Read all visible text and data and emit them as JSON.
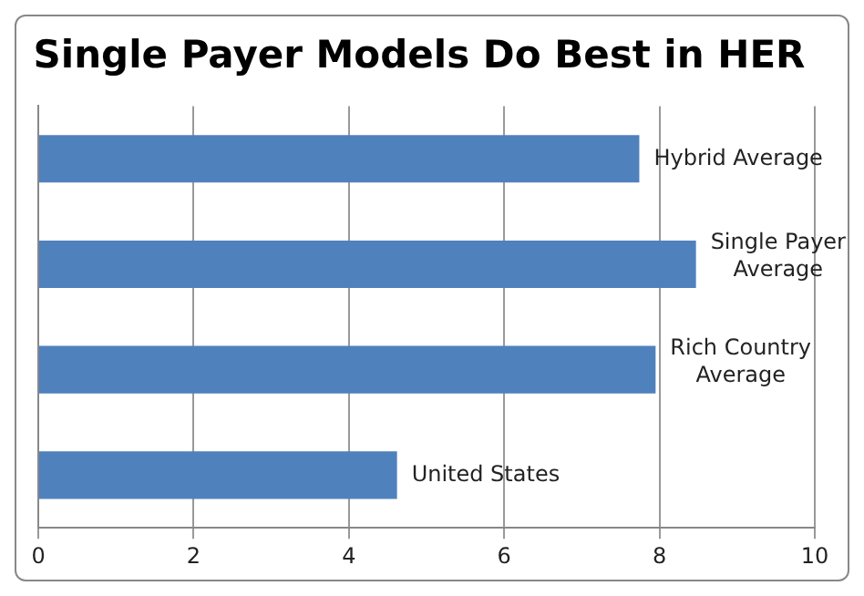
{
  "chart_data": {
    "type": "bar",
    "orientation": "horizontal",
    "title": "Single Payer Models Do Best in HER",
    "categories": [
      "Hybrid Average",
      "Single Payer Average",
      "Rich Country Average",
      "United States"
    ],
    "values": [
      7.74,
      8.47,
      7.95,
      4.62
    ],
    "color": "#4f81bd",
    "xlim": [
      0,
      10
    ],
    "xticks": [
      0,
      2,
      4,
      6,
      8,
      10
    ],
    "grid": "x"
  }
}
